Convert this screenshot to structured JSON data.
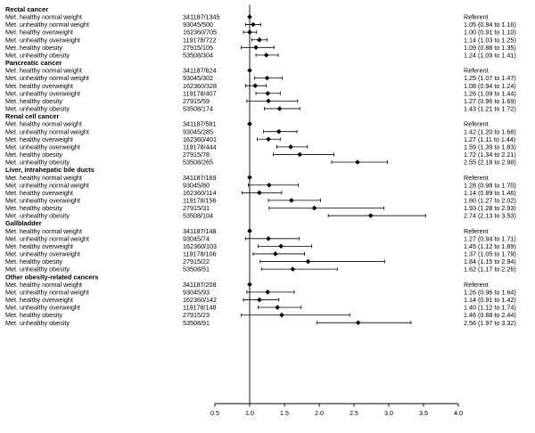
{
  "chart_data": {
    "type": "forest",
    "reference_line": 1.0,
    "xlim": [
      0.5,
      4.0
    ],
    "x_ticks": [
      "0.5",
      "1.0",
      "1.5",
      "2.0",
      "2.5",
      "3.0",
      "3.5",
      "4.0"
    ],
    "groups": [
      {
        "name": "Rectal cancer",
        "rows": [
          {
            "label": "Met. healthy normal weight",
            "n": "341187/1345",
            "estimate": "Referent",
            "hr": 1.0,
            "lo": null,
            "hi": null
          },
          {
            "label": "Met. unhealthy normal weight",
            "n": "93045/500",
            "estimate": "1.05 (0.94 to 1.16)",
            "hr": 1.05,
            "lo": 0.94,
            "hi": 1.16
          },
          {
            "label": "Met. healthy overweight",
            "n": "162360/705",
            "estimate": "1.00 (0.91 to 1.10)",
            "hr": 1.0,
            "lo": 0.91,
            "hi": 1.1
          },
          {
            "label": "Met. unhealthy overweight",
            "n": "119178/722",
            "estimate": "1.14 (1.03 to 1.25)",
            "hr": 1.14,
            "lo": 1.03,
            "hi": 1.25
          },
          {
            "label": "Met. healthy obesity",
            "n": "27915/105",
            "estimate": "1.09 (0.88 to 1.35)",
            "hr": 1.09,
            "lo": 0.88,
            "hi": 1.35
          },
          {
            "label": "Met. unhealthy obesity",
            "n": "53508/304",
            "estimate": "1.24 (1.09 to 1.41)",
            "hr": 1.24,
            "lo": 1.09,
            "hi": 1.41
          }
        ]
      },
      {
        "name": "Pancreatic cancer",
        "rows": [
          {
            "label": "Met. healthy normal weight",
            "n": "341187/624",
            "estimate": "Referent",
            "hr": 1.0,
            "lo": null,
            "hi": null
          },
          {
            "label": "Met. unhealthy normal weight",
            "n": "93045/302",
            "estimate": "1.25 (1.07 to 1.47)",
            "hr": 1.25,
            "lo": 1.07,
            "hi": 1.47
          },
          {
            "label": "Met. healthy overweight",
            "n": "162360/328",
            "estimate": "1.08 (0.94 to 1.24)",
            "hr": 1.08,
            "lo": 0.94,
            "hi": 1.24
          },
          {
            "label": "Met. unhealthy overweight",
            "n": "119178/407",
            "estimate": "1.26 (1.09 to 1.44)",
            "hr": 1.26,
            "lo": 1.09,
            "hi": 1.44
          },
          {
            "label": "Met. healthy obesity",
            "n": "27915/59",
            "estimate": "1.27 (0.96 to 1.69)",
            "hr": 1.27,
            "lo": 0.96,
            "hi": 1.69
          },
          {
            "label": "Met. unhealthy obesity",
            "n": "53508/174",
            "estimate": "1.43 (1.21 to 1.72)",
            "hr": 1.43,
            "lo": 1.21,
            "hi": 1.72
          }
        ]
      },
      {
        "name": "Renal cell cancer",
        "rows": [
          {
            "label": "Met. healthy normal weight",
            "n": "341187/581",
            "estimate": "Referent",
            "hr": 1.0,
            "lo": null,
            "hi": null
          },
          {
            "label": "Met. unhealthy normal weight",
            "n": "93045/285",
            "estimate": "1.42 (1.20 to 1.68)",
            "hr": 1.42,
            "lo": 1.2,
            "hi": 1.68
          },
          {
            "label": "Met. healthy overweight",
            "n": "162360/401",
            "estimate": "1.27 (1.11 to 1.44)",
            "hr": 1.27,
            "lo": 1.11,
            "hi": 1.44
          },
          {
            "label": "Met. unhealthy overweight",
            "n": "119178/444",
            "estimate": "1.59 (1.39 to 1.83)",
            "hr": 1.59,
            "lo": 1.39,
            "hi": 1.83
          },
          {
            "label": "Met. healthy obesity",
            "n": "27915/78",
            "estimate": "1.72 (1.34 to 2.21)",
            "hr": 1.72,
            "lo": 1.34,
            "hi": 2.21
          },
          {
            "label": "Met. unhealthy obesity",
            "n": "53508/265",
            "estimate": "2.55 (2.18 to 2.98)",
            "hr": 2.55,
            "lo": 2.18,
            "hi": 2.98
          }
        ]
      },
      {
        "name": "Liver, intrahepatic bile ducts",
        "rows": [
          {
            "label": "Met. healthy normal weight",
            "n": "341187/169",
            "estimate": "Referent",
            "hr": 1.0,
            "lo": null,
            "hi": null
          },
          {
            "label": "Met. unhealthy normal weight",
            "n": "93045/80",
            "estimate": "1.28 (0.98 to 1.70)",
            "hr": 1.28,
            "lo": 0.98,
            "hi": 1.7
          },
          {
            "label": "Met. healthy overweight",
            "n": "162360/114",
            "estimate": "1.14 (0.89 to 1.46)",
            "hr": 1.14,
            "lo": 0.89,
            "hi": 1.46
          },
          {
            "label": "Met. unhealthy overweight",
            "n": "119178/156",
            "estimate": "1.60 (1.27 to 2.02)",
            "hr": 1.6,
            "lo": 1.27,
            "hi": 2.02
          },
          {
            "label": "Met. healthy obesity",
            "n": "27915/31",
            "estimate": "1.93 (1.28 to 2.93)",
            "hr": 1.93,
            "lo": 1.28,
            "hi": 2.93
          },
          {
            "label": "Met. unhealthy obesity",
            "n": "53508/104",
            "estimate": "2.74 (2.13 to 3.53)",
            "hr": 2.74,
            "lo": 2.13,
            "hi": 3.53
          }
        ]
      },
      {
        "name": "Gallbladder",
        "rows": [
          {
            "label": "Met. healthy normal weight",
            "n": "341187/148",
            "estimate": "Referent",
            "hr": 1.0,
            "lo": null,
            "hi": null
          },
          {
            "label": "Met. unhealthy normal weight",
            "n": "93045/74",
            "estimate": "1.27 (0.94 to 1.71)",
            "hr": 1.27,
            "lo": 0.94,
            "hi": 1.71
          },
          {
            "label": "Met. healthy overweight",
            "n": "162360/103",
            "estimate": "1.45 (1.12 to 1.89)",
            "hr": 1.45,
            "lo": 1.12,
            "hi": 1.89
          },
          {
            "label": "Met. unhealthy overweight",
            "n": "119178/106",
            "estimate": "1.37 (1.05 to 1.79)",
            "hr": 1.37,
            "lo": 1.05,
            "hi": 1.79
          },
          {
            "label": "Met. healthy obesity",
            "n": "27915/22",
            "estimate": "1.84 (1.15 to 2.94)",
            "hr": 1.84,
            "lo": 1.15,
            "hi": 2.94
          },
          {
            "label": "Met. unhealthy obesity",
            "n": "53508/51",
            "estimate": "1.62 (1.17 to 2.26)",
            "hr": 1.62,
            "lo": 1.17,
            "hi": 2.26
          }
        ]
      },
      {
        "name": "Other obesity-related cancers",
        "rows": [
          {
            "label": "Met. healthy normal weight",
            "n": "341187/208",
            "estimate": "Referent",
            "hr": 1.0,
            "lo": null,
            "hi": null
          },
          {
            "label": "Met. unhealthy normal weight",
            "n": "93045/93",
            "estimate": "1.26 (0.96 to 1.64)",
            "hr": 1.26,
            "lo": 0.96,
            "hi": 1.64
          },
          {
            "label": "Met. healthy overweight",
            "n": "162360/142",
            "estimate": "1.14 (0.91 to 1.42)",
            "hr": 1.14,
            "lo": 0.91,
            "hi": 1.42
          },
          {
            "label": "Met. unhealthy overweight",
            "n": "119178/148",
            "estimate": "1.40 (1.12 to 1.74)",
            "hr": 1.4,
            "lo": 1.12,
            "hi": 1.74
          },
          {
            "label": "Met. healthy obesity",
            "n": "27915/23",
            "estimate": "1.46 (0.88 to 2.44)",
            "hr": 1.46,
            "lo": 0.88,
            "hi": 2.44
          },
          {
            "label": "Met. unhealthy obesity",
            "n": "53508/91",
            "estimate": "2.56 (1.97 to 3.32)",
            "hr": 2.56,
            "lo": 1.97,
            "hi": 3.32
          }
        ]
      }
    ]
  }
}
